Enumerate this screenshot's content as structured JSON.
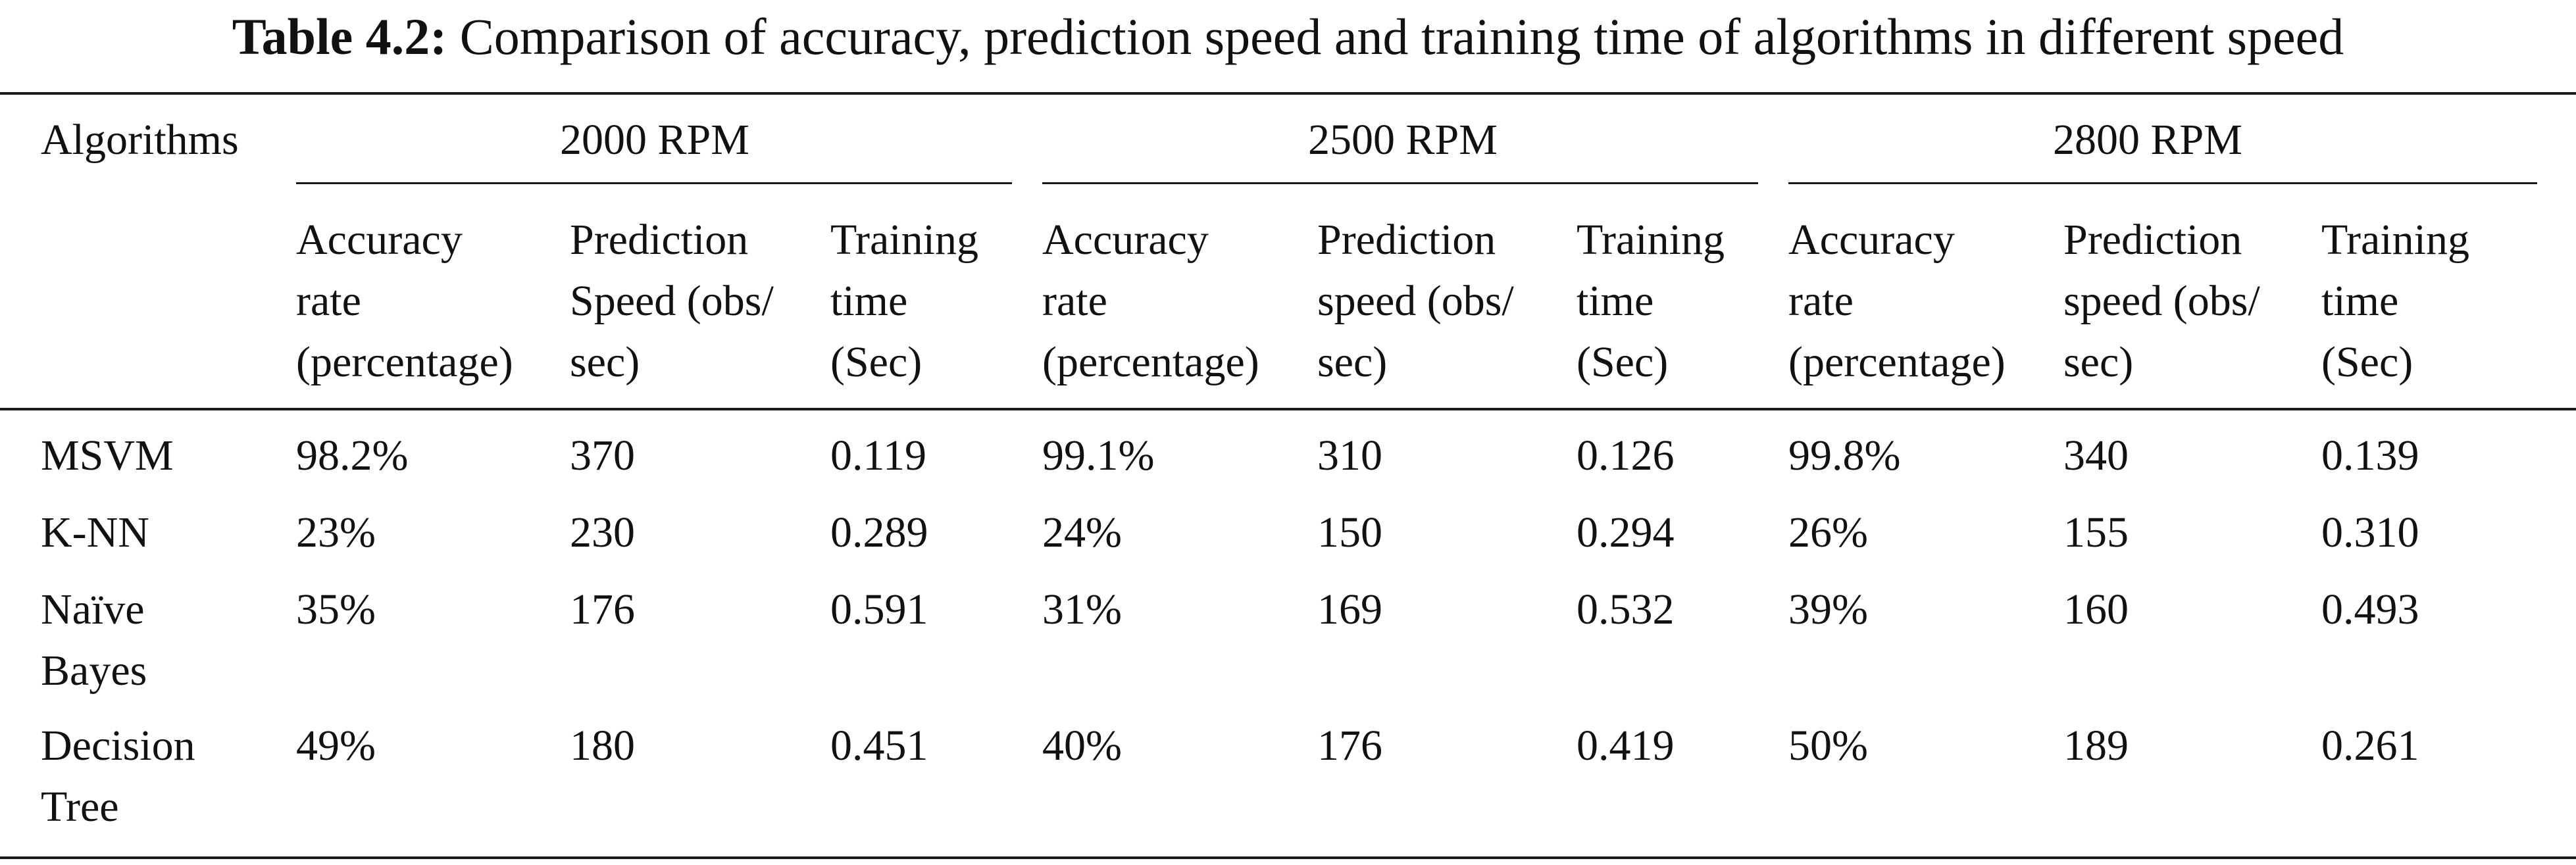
{
  "caption": {
    "label": "Table 4.2:",
    "text": "Comparison of accuracy, prediction speed and training time of algorithms in different speed"
  },
  "table": {
    "algorithms_header": "Algorithms",
    "groups": [
      "2000 RPM",
      "2500 RPM",
      "2800 RPM"
    ],
    "subheaders": [
      [
        [
          "Accuracy",
          "rate",
          "(percentage)"
        ],
        [
          "Prediction",
          "Speed (obs/",
          "sec)"
        ],
        [
          "Training",
          "time",
          "(Sec)"
        ]
      ],
      [
        [
          "Accuracy",
          "rate",
          "(percentage)"
        ],
        [
          "Prediction",
          "speed (obs/",
          "sec)"
        ],
        [
          "Training",
          "time",
          "(Sec)"
        ]
      ],
      [
        [
          "Accuracy",
          "rate",
          "(percentage)"
        ],
        [
          "Prediction",
          "speed (obs/",
          "sec)"
        ],
        [
          "Training",
          "time",
          "(Sec)"
        ]
      ]
    ],
    "rows": [
      {
        "name": [
          "MSVM"
        ],
        "values": [
          "98.2%",
          "370",
          "0.119",
          "99.1%",
          "310",
          "0.126",
          "99.8%",
          "340",
          "0.139"
        ]
      },
      {
        "name": [
          "K-NN"
        ],
        "values": [
          "23%",
          "230",
          "0.289",
          "24%",
          "150",
          "0.294",
          "26%",
          "155",
          "0.310"
        ]
      },
      {
        "name": [
          "Naïve",
          "Bayes"
        ],
        "values": [
          "35%",
          "176",
          "0.591",
          "31%",
          "169",
          "0.532",
          "39%",
          "160",
          "0.493"
        ]
      },
      {
        "name": [
          "Decision",
          "Tree"
        ],
        "values": [
          "49%",
          "180",
          "0.451",
          "40%",
          "176",
          "0.419",
          "50%",
          "189",
          "0.261"
        ]
      }
    ]
  }
}
